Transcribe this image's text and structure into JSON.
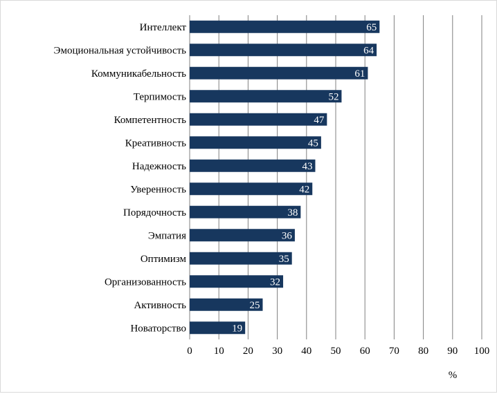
{
  "chart_data": {
    "type": "bar",
    "orientation": "horizontal",
    "categories": [
      "Интеллект",
      "Эмоциональная устойчивость",
      "Коммуникабельность",
      "Терпимость",
      "Компетентность",
      "Креативность",
      "Надежность",
      "Уверенность",
      "Порядочность",
      "Эмпатия",
      "Оптимизм",
      "Организованность",
      "Активность",
      "Новаторство"
    ],
    "values": [
      65,
      64,
      61,
      52,
      47,
      45,
      43,
      42,
      38,
      36,
      35,
      32,
      25,
      19
    ],
    "xlabel": "%",
    "ylabel": "",
    "xlim": [
      0,
      100
    ],
    "xticks": [
      "0",
      "10",
      "20",
      "30",
      "40",
      "50",
      "60",
      "70",
      "80",
      "90",
      "100"
    ],
    "grid": "vertical",
    "legend": "none",
    "data_labels": "inside-end",
    "colors": {
      "bar": "#17375e",
      "grid": "#7f7f7f",
      "label": "#ffffff",
      "frame": "#d9d9d9"
    }
  }
}
